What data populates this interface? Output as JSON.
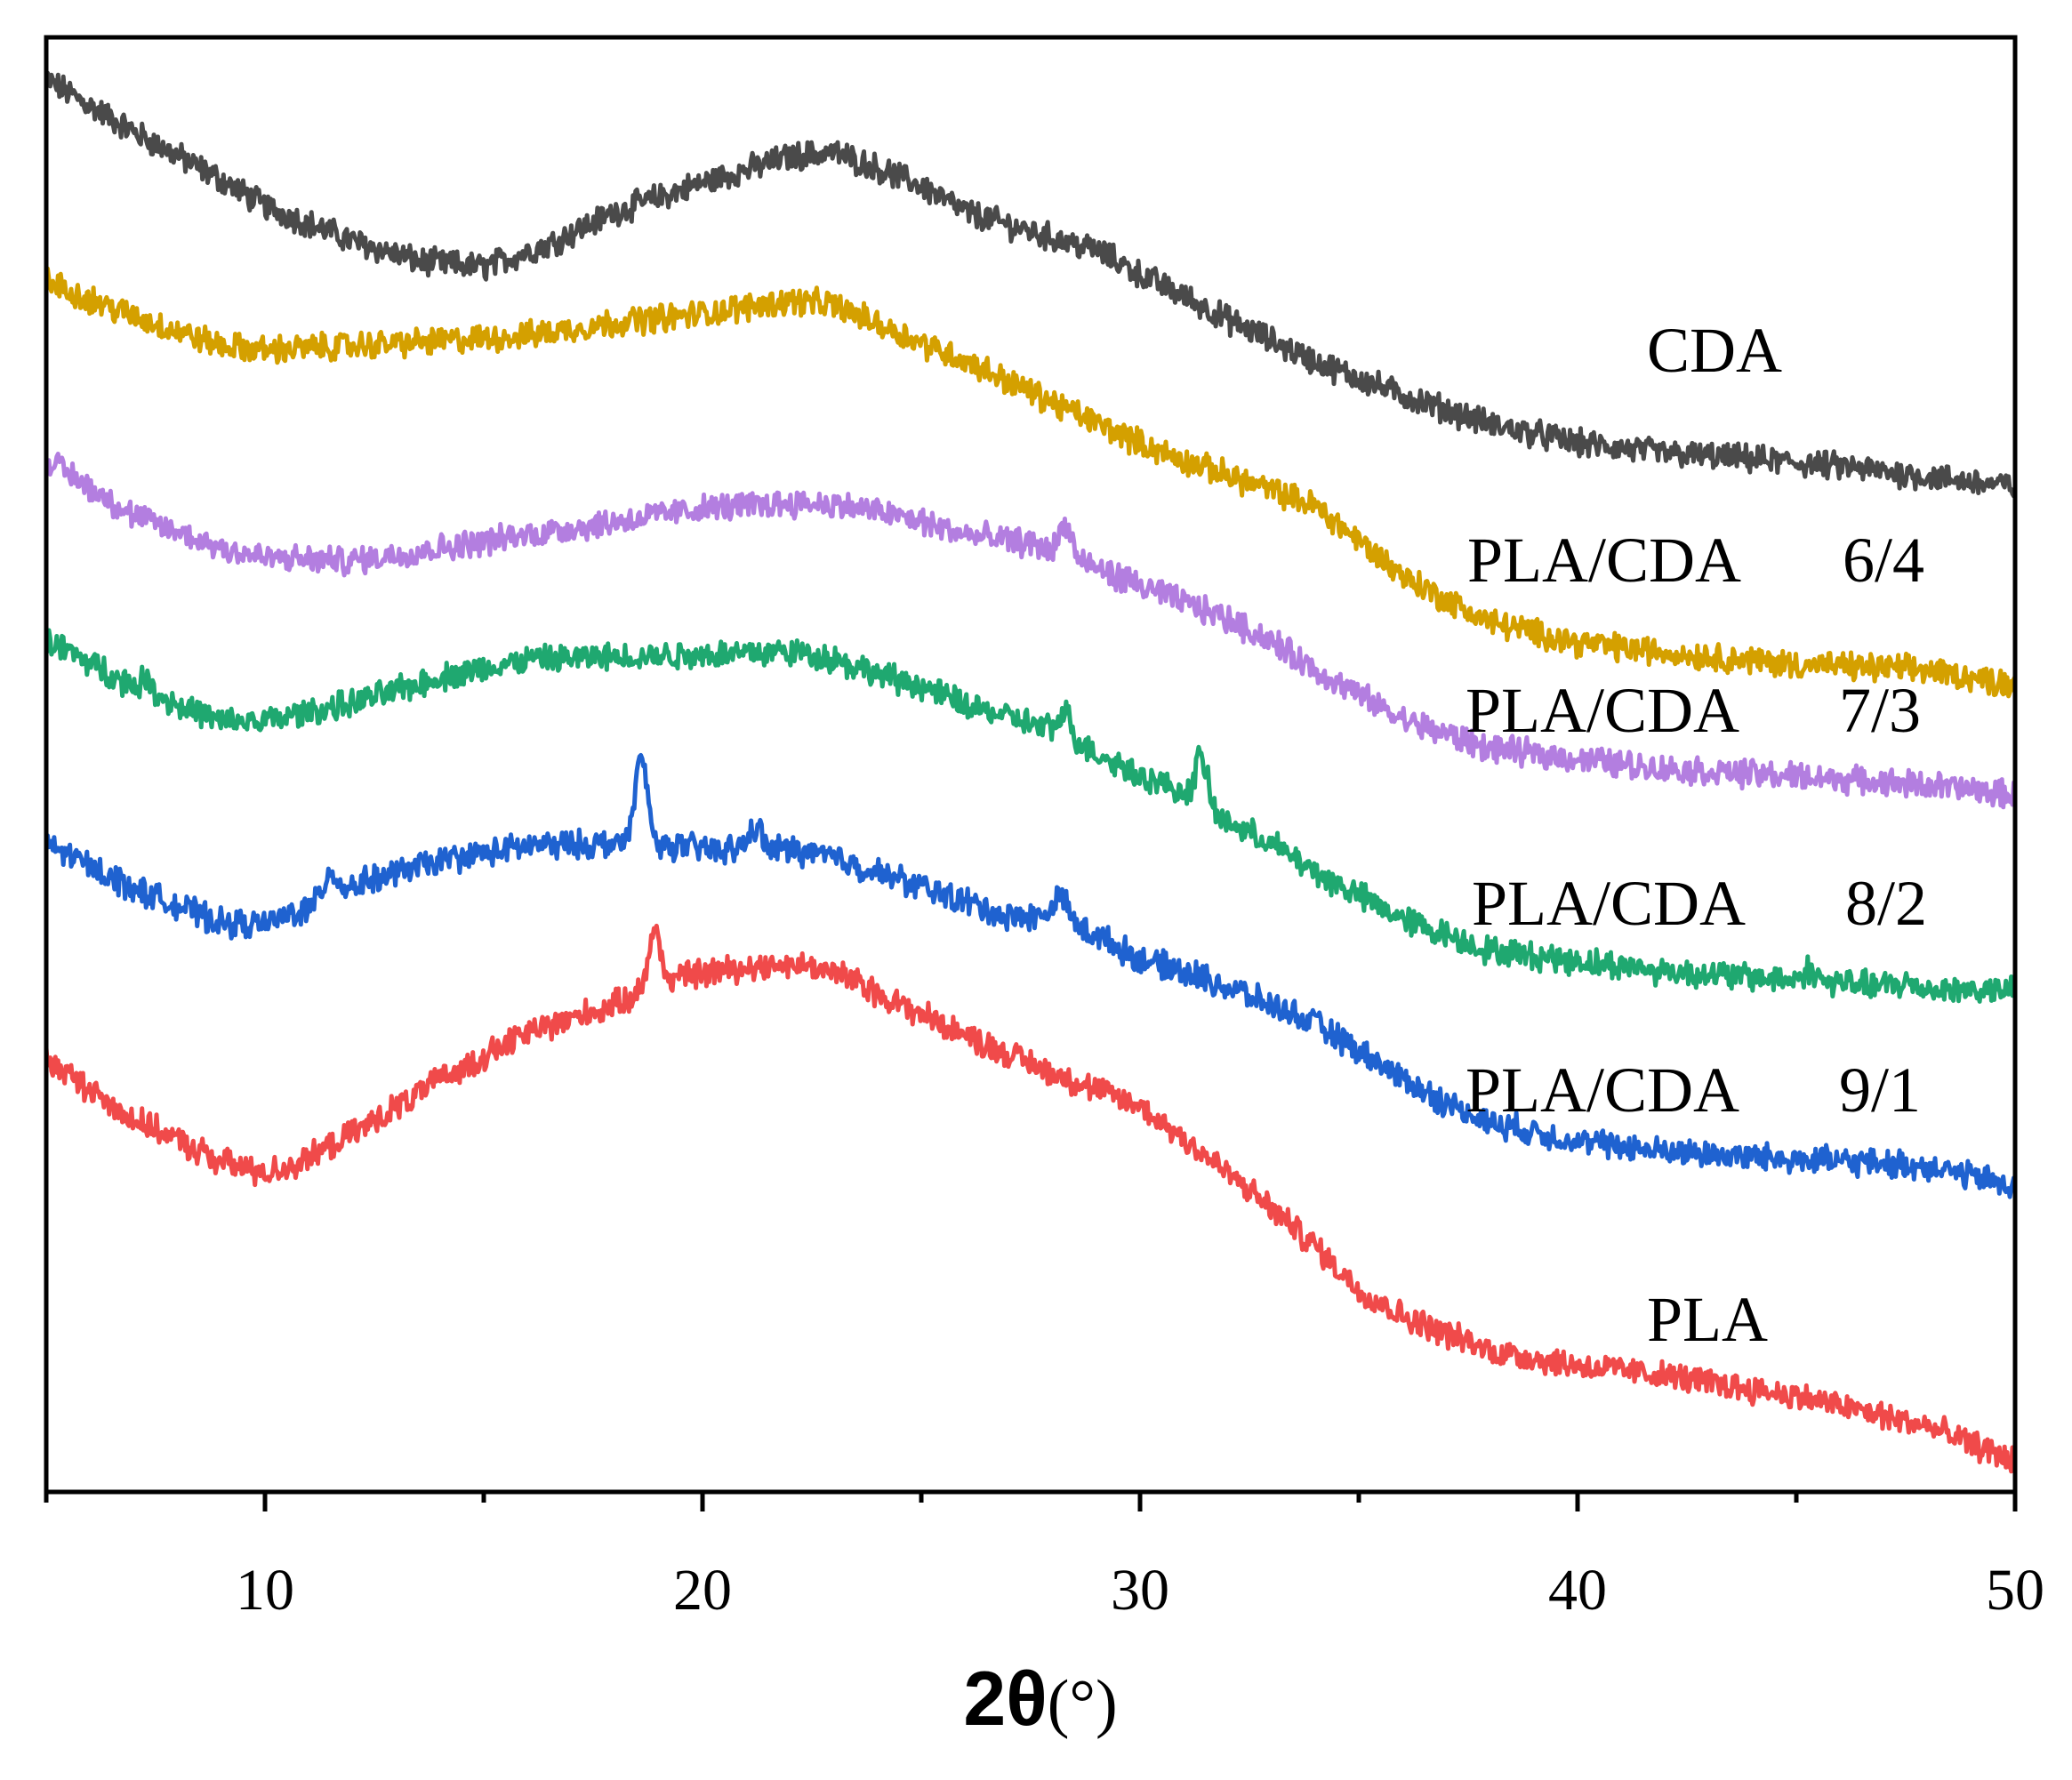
{
  "chart_data": {
    "type": "line",
    "title": "",
    "xlabel": "2θ",
    "xlabel_unit": "(°)",
    "ylabel": "",
    "xlim": [
      5,
      50
    ],
    "xticks": [
      10,
      20,
      30,
      40,
      50
    ],
    "x_tick_labels": [
      "10",
      "20",
      "30",
      "40",
      "50"
    ],
    "yticks_shown": false,
    "ylim": [
      0,
      100
    ],
    "grid": false,
    "legend": "inline labels at right",
    "series": [
      {
        "name": "CDA",
        "label": "CDA",
        "color": "#4a4a4a",
        "points": [
          [
            5,
            97.1
          ],
          [
            7,
            93.5
          ],
          [
            9,
            90.2
          ],
          [
            10,
            88.4
          ],
          [
            12,
            86.0
          ],
          [
            13.5,
            84.6
          ],
          [
            15,
            84.2
          ],
          [
            16.5,
            85.8
          ],
          [
            18,
            88.0
          ],
          [
            20,
            90.0
          ],
          [
            22,
            91.8
          ],
          [
            23,
            92.1
          ],
          [
            24,
            91.0
          ],
          [
            25,
            89.8
          ],
          [
            26,
            88.0
          ],
          [
            28,
            86.2
          ],
          [
            29,
            85.4
          ],
          [
            30,
            83.7
          ],
          [
            31,
            82.2
          ],
          [
            32,
            80.6
          ],
          [
            34,
            77.7
          ],
          [
            36,
            75.4
          ],
          [
            38,
            73.4
          ],
          [
            40,
            72.1
          ],
          [
            42,
            71.4
          ],
          [
            44,
            71.0
          ],
          [
            46,
            70.5
          ],
          [
            48,
            69.8
          ],
          [
            50,
            69.1
          ]
        ],
        "peaks": []
      },
      {
        "name": "PLA/CDA 6/4",
        "label_prefix": "PLA/CDA",
        "label_ratio": "6/4",
        "color": "#d4a000",
        "points": [
          [
            5,
            83.2
          ],
          [
            7,
            80.8
          ],
          [
            9,
            78.8
          ],
          [
            10,
            78.5
          ],
          [
            12,
            78.8
          ],
          [
            14,
            79.1
          ],
          [
            16,
            79.5
          ],
          [
            18,
            80.4
          ],
          [
            20,
            81.0
          ],
          [
            22,
            81.9
          ],
          [
            23,
            81.6
          ],
          [
            24,
            80.3
          ],
          [
            25,
            79.0
          ],
          [
            26,
            77.8
          ],
          [
            28,
            74.9
          ],
          [
            29,
            73.5
          ],
          [
            30,
            72.1
          ],
          [
            31,
            70.9
          ],
          [
            32,
            69.9
          ],
          [
            34,
            67.8
          ],
          [
            36,
            63.0
          ],
          [
            37,
            61.3
          ],
          [
            38,
            59.8
          ],
          [
            40,
            58.4
          ],
          [
            42,
            57.7
          ],
          [
            45,
            56.9
          ],
          [
            48,
            56.5
          ],
          [
            50,
            55.5
          ]
        ],
        "peaks": []
      },
      {
        "name": "PLA/CDA 7/3",
        "label_prefix": "PLA/CDA",
        "label_ratio": "7/3",
        "color": "#b37ee0",
        "points": [
          [
            5,
            71.0
          ],
          [
            7,
            67.1
          ],
          [
            9,
            64.9
          ],
          [
            10,
            64.2
          ],
          [
            12,
            64.0
          ],
          [
            14,
            64.9
          ],
          [
            16,
            65.8
          ],
          [
            18,
            66.7
          ],
          [
            20,
            67.6
          ],
          [
            22,
            68.0
          ],
          [
            23,
            67.9
          ],
          [
            24,
            67.4
          ],
          [
            25,
            66.7
          ],
          [
            26,
            65.8
          ],
          [
            27.5,
            65.2
          ],
          [
            29,
            63.5
          ],
          [
            30,
            62.3
          ],
          [
            32,
            60.0
          ],
          [
            33,
            58.5
          ],
          [
            34,
            56.5
          ],
          [
            36,
            53.1
          ],
          [
            38,
            51.1
          ],
          [
            40,
            50.4
          ],
          [
            42,
            49.7
          ],
          [
            45,
            49.2
          ],
          [
            48,
            48.6
          ],
          [
            50,
            47.9
          ]
        ],
        "peaks": [
          [
            28.3,
            66.5
          ]
        ]
      },
      {
        "name": "PLA/CDA 8/2",
        "label_prefix": "PLA/CDA",
        "label_ratio": "8/2",
        "color": "#1fa870",
        "points": [
          [
            5,
            58.6
          ],
          [
            7,
            55.4
          ],
          [
            9,
            52.9
          ],
          [
            10,
            53.0
          ],
          [
            12,
            54.2
          ],
          [
            14,
            56.0
          ],
          [
            16,
            57.2
          ],
          [
            18,
            57.4
          ],
          [
            20,
            57.6
          ],
          [
            22,
            57.8
          ],
          [
            23,
            57.3
          ],
          [
            24,
            56.2
          ],
          [
            25,
            55.4
          ],
          [
            26,
            54.1
          ],
          [
            28,
            52.4
          ],
          [
            29,
            50.8
          ],
          [
            30,
            49.3
          ],
          [
            31,
            48.0
          ],
          [
            32,
            46.0
          ],
          [
            33,
            44.6
          ],
          [
            34,
            42.6
          ],
          [
            36,
            39.4
          ],
          [
            38,
            37.2
          ],
          [
            40,
            36.5
          ],
          [
            42,
            35.8
          ],
          [
            45,
            35.2
          ],
          [
            48,
            34.6
          ],
          [
            50,
            34.4
          ]
        ],
        "peaks": [
          [
            7.3,
            55.8
          ],
          [
            28.3,
            53.5
          ],
          [
            31.4,
            50.5
          ],
          [
            45.3,
            35.9
          ],
          [
            47.5,
            35.0
          ]
        ]
      },
      {
        "name": "PLA/CDA 9/1",
        "label_prefix": "PLA/CDA",
        "label_ratio": "9/1",
        "color": "#1f62d0",
        "points": [
          [
            5,
            44.6
          ],
          [
            7,
            41.5
          ],
          [
            9,
            39.1
          ],
          [
            10,
            39.0
          ],
          [
            11,
            40.2
          ],
          [
            12,
            41.7
          ],
          [
            14,
            43.4
          ],
          [
            16,
            44.4
          ],
          [
            18,
            44.6
          ],
          [
            19,
            44.5
          ],
          [
            20,
            44.2
          ],
          [
            22,
            44.2
          ],
          [
            23,
            43.6
          ],
          [
            24,
            42.6
          ],
          [
            26,
            40.6
          ],
          [
            27,
            39.5
          ],
          [
            28,
            39.6
          ],
          [
            29,
            38.3
          ],
          [
            30,
            36.6
          ],
          [
            31,
            35.8
          ],
          [
            32,
            34.7
          ],
          [
            34,
            32.2
          ],
          [
            36,
            28.4
          ],
          [
            37,
            26.7
          ],
          [
            38,
            25.4
          ],
          [
            40,
            24.1
          ],
          [
            42,
            23.4
          ],
          [
            45,
            22.9
          ],
          [
            48,
            22.4
          ],
          [
            50,
            21.0
          ]
        ],
        "peaks": [
          [
            11.5,
            42.7
          ],
          [
            18.6,
            50.4
          ],
          [
            21.2,
            45.7
          ],
          [
            28.2,
            41.0
          ]
        ]
      },
      {
        "name": "PLA",
        "label": "PLA",
        "color": "#f04a4a",
        "points": [
          [
            5,
            29.7
          ],
          [
            7,
            25.6
          ],
          [
            9,
            22.7
          ],
          [
            10,
            21.9
          ],
          [
            11,
            22.9
          ],
          [
            12,
            24.6
          ],
          [
            14,
            28.3
          ],
          [
            16,
            31.6
          ],
          [
            18,
            33.5
          ],
          [
            18.7,
            34.5
          ],
          [
            19.5,
            35.5
          ],
          [
            21,
            36.1
          ],
          [
            22,
            36.3
          ],
          [
            23,
            35.8
          ],
          [
            24,
            34.3
          ],
          [
            26,
            31.4
          ],
          [
            28,
            28.8
          ],
          [
            30,
            26.5
          ],
          [
            31,
            24.3
          ],
          [
            32,
            21.9
          ],
          [
            33,
            19.5
          ],
          [
            34,
            16.9
          ],
          [
            35,
            13.9
          ],
          [
            36,
            12.1
          ],
          [
            38,
            9.7
          ],
          [
            40,
            8.7
          ],
          [
            42,
            8.0
          ],
          [
            45,
            6.6
          ],
          [
            48,
            4.5
          ],
          [
            50,
            2.1
          ]
        ],
        "peaks": [
          [
            18.9,
            38.5
          ]
        ]
      }
    ]
  }
}
